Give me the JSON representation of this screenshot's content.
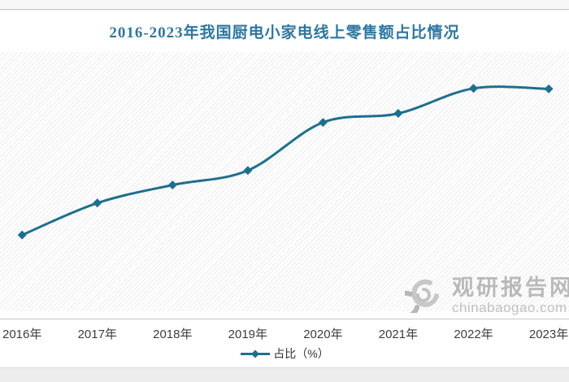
{
  "title": "2016-2023年我国厨电小家电线上零售额占比情况",
  "legend": {
    "label": "占比（%）"
  },
  "watermark": {
    "name": "观研报告网",
    "url": "chinabaogao.com",
    "logo_icon": "swirl-logo"
  },
  "colors": {
    "line": "#1e6f8e",
    "marker": "#1e6f8e",
    "title_text": "#2e77a3",
    "axis_label": "#3d3d3d",
    "watermark_gray": "#b3b3b3",
    "hatch": "#ececec"
  },
  "chart_data": {
    "type": "line",
    "title": "2016-2023年我国厨电小家电线上零售额占比情况",
    "categories": [
      "2016年",
      "2017年",
      "2018年",
      "2019年",
      "2020年",
      "2021年",
      "2022年",
      "2023年"
    ],
    "series": [
      {
        "name": "占比（%）",
        "values": [
          41.6,
          48.0,
          51.6,
          54.5,
          64.1,
          65.9,
          70.9,
          70.8
        ]
      }
    ],
    "xlabel": "",
    "ylabel": "占比（%）",
    "ylim": [
      40,
      72
    ],
    "y_axis_shown": false,
    "note": "no y-axis ticks rendered in image; series values estimated from marker positions",
    "grid": false,
    "smooth": true,
    "marker": "diamond",
    "legend_position": "bottom"
  }
}
